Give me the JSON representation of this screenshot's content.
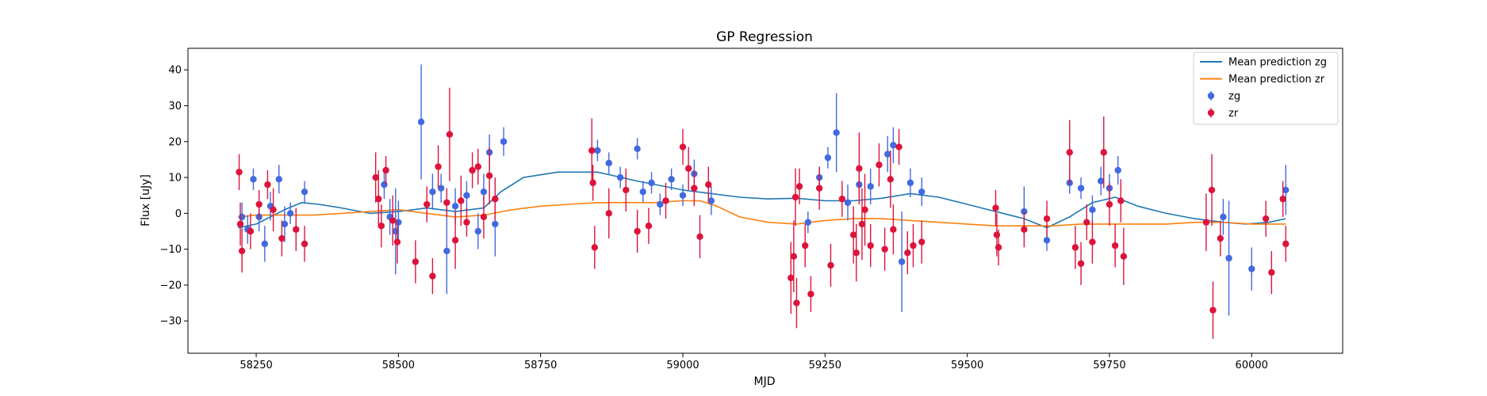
{
  "chart_data": {
    "type": "scatter",
    "title": "GP Regression",
    "xlabel": "MJD",
    "ylabel": "Flux [uJy]",
    "xlim": [
      58130,
      60160
    ],
    "ylim": [
      -39,
      46
    ],
    "xticks": [
      58250,
      58500,
      58750,
      59000,
      59250,
      59500,
      59750,
      60000
    ],
    "yticks": [
      -30,
      -20,
      -10,
      0,
      10,
      20,
      30,
      40
    ],
    "grid": false,
    "legend_position": "top-right",
    "colors": {
      "zg_mean": "#1f77b4",
      "zr_mean": "#ff7f0e",
      "zg_points": "#4169e1",
      "zr_points": "#dc143c"
    },
    "legend": [
      {
        "label": "Mean prediction zg",
        "kind": "line",
        "color": "#1f77b4"
      },
      {
        "label": "Mean prediction zr",
        "kind": "line",
        "color": "#ff7f0e"
      },
      {
        "label": "zg",
        "kind": "errorbar",
        "color": "#4169e1"
      },
      {
        "label": "zr",
        "kind": "errorbar",
        "color": "#dc143c"
      }
    ],
    "series": [
      {
        "name": "Mean prediction zg",
        "kind": "line",
        "x": [
          58218,
          58250,
          58300,
          58330,
          58360,
          58400,
          58450,
          58500,
          58550,
          58600,
          58650,
          58680,
          58720,
          58780,
          58850,
          58920,
          59000,
          59050,
          59100,
          59150,
          59200,
          59250,
          59300,
          59350,
          59400,
          59450,
          59500,
          59550,
          59600,
          59640,
          59680,
          59720,
          59760,
          59800,
          59850,
          59900,
          59950,
          59990,
          60030,
          60060
        ],
        "y": [
          -4,
          -3,
          1,
          3,
          2.5,
          1.5,
          0,
          0.5,
          1.5,
          0.5,
          1.5,
          6,
          10,
          11.5,
          11.5,
          9,
          6.5,
          5.5,
          4.5,
          4,
          4.2,
          3.5,
          3.5,
          4.2,
          5.5,
          4.5,
          2.5,
          0.5,
          -1.5,
          -4,
          -1,
          3,
          4.5,
          2,
          0,
          -1.5,
          -2.5,
          -3,
          -2.5,
          -1.5
        ]
      },
      {
        "name": "Mean prediction zr",
        "kind": "line",
        "x": [
          58218,
          58250,
          58300,
          58350,
          58400,
          58450,
          58500,
          58550,
          58600,
          58650,
          58700,
          58750,
          58800,
          58850,
          58900,
          58950,
          59000,
          59030,
          59060,
          59100,
          59150,
          59200,
          59250,
          59300,
          59350,
          59400,
          59450,
          59500,
          59550,
          59600,
          59650,
          59700,
          59750,
          59800,
          59850,
          59900,
          59950,
          60000,
          60060
        ],
        "y": [
          -1,
          -0.5,
          -0.5,
          -0.5,
          0,
          0.5,
          1,
          0,
          -1,
          -0.5,
          1,
          2,
          2.5,
          3,
          3,
          3,
          3.5,
          3.5,
          2,
          -1,
          -2.5,
          -3,
          -2,
          -1.5,
          -1.5,
          -2,
          -2.5,
          -3,
          -3.5,
          -3.5,
          -3.5,
          -3,
          -3,
          -3,
          -3,
          -2.5,
          -2.5,
          -3,
          -3
        ]
      },
      {
        "name": "zg",
        "kind": "errorbar",
        "points": [
          [
            58225,
            -1,
            4
          ],
          [
            58235,
            -4.5,
            4
          ],
          [
            58245,
            9.5,
            3
          ],
          [
            58255,
            -1,
            4
          ],
          [
            58265,
            -8.5,
            5
          ],
          [
            58275,
            2,
            4
          ],
          [
            58290,
            9.5,
            4
          ],
          [
            58300,
            -3,
            5
          ],
          [
            58310,
            0,
            3
          ],
          [
            58335,
            6,
            3
          ],
          [
            58475,
            8,
            4
          ],
          [
            58485,
            -1,
            5
          ],
          [
            58495,
            -5,
            12
          ],
          [
            58500,
            -2.5,
            6
          ],
          [
            58540,
            25.5,
            16
          ],
          [
            58560,
            6,
            5
          ],
          [
            58575,
            7,
            4
          ],
          [
            58585,
            -10.5,
            12
          ],
          [
            58600,
            2,
            5
          ],
          [
            58620,
            5,
            4
          ],
          [
            58640,
            -5,
            5
          ],
          [
            58650,
            6,
            5
          ],
          [
            58660,
            17,
            5
          ],
          [
            58670,
            -3,
            9
          ],
          [
            58685,
            20,
            4
          ],
          [
            58850,
            17.5,
            3
          ],
          [
            58870,
            14,
            3
          ],
          [
            58890,
            10,
            3
          ],
          [
            58920,
            18,
            3
          ],
          [
            58930,
            6,
            3
          ],
          [
            58945,
            8.5,
            3
          ],
          [
            58960,
            2.5,
            3
          ],
          [
            58980,
            9.5,
            3
          ],
          [
            59000,
            5,
            3
          ],
          [
            59020,
            11,
            4
          ],
          [
            59050,
            3.5,
            4
          ],
          [
            59220,
            -2.5,
            3
          ],
          [
            59240,
            10,
            3
          ],
          [
            59255,
            15.5,
            3
          ],
          [
            59270,
            22.5,
            11
          ],
          [
            59290,
            3,
            5
          ],
          [
            59310,
            8,
            4
          ],
          [
            59330,
            7.5,
            5
          ],
          [
            59360,
            16.5,
            5
          ],
          [
            59370,
            19,
            5
          ],
          [
            59385,
            -13.5,
            14
          ],
          [
            59400,
            8.5,
            4
          ],
          [
            59420,
            6,
            4
          ],
          [
            59600,
            0.5,
            7
          ],
          [
            59640,
            -7.5,
            3
          ],
          [
            59680,
            8.5,
            3
          ],
          [
            59700,
            7,
            3
          ],
          [
            59720,
            1,
            4
          ],
          [
            59735,
            9,
            4
          ],
          [
            59750,
            7,
            4
          ],
          [
            59765,
            12,
            4
          ],
          [
            59950,
            -1,
            5
          ],
          [
            59960,
            -12.5,
            16
          ],
          [
            60000,
            -15.5,
            6
          ],
          [
            60060,
            6.5,
            7
          ]
        ]
      },
      {
        "name": "zr",
        "kind": "errorbar",
        "points": [
          [
            58220,
            11.5,
            5
          ],
          [
            58222,
            -3,
            6
          ],
          [
            58225,
            -10.5,
            6
          ],
          [
            58240,
            -5,
            5
          ],
          [
            58255,
            2.5,
            4
          ],
          [
            58270,
            8,
            4
          ],
          [
            58280,
            1,
            6
          ],
          [
            58295,
            -7,
            5
          ],
          [
            58320,
            -4.5,
            6
          ],
          [
            58335,
            -8.5,
            5
          ],
          [
            58460,
            10,
            7
          ],
          [
            58465,
            4,
            8
          ],
          [
            58470,
            -3.5,
            6
          ],
          [
            58478,
            12,
            4
          ],
          [
            58490,
            -2,
            7
          ],
          [
            58498,
            -8,
            6
          ],
          [
            58530,
            -13.5,
            6
          ],
          [
            58550,
            2.5,
            5
          ],
          [
            58560,
            -17.5,
            5
          ],
          [
            58570,
            13,
            6
          ],
          [
            58585,
            3,
            4
          ],
          [
            58590,
            22,
            13
          ],
          [
            58600,
            -7.5,
            8
          ],
          [
            58610,
            3.5,
            7
          ],
          [
            58620,
            -2.5,
            4
          ],
          [
            58630,
            12,
            5
          ],
          [
            58640,
            13,
            5
          ],
          [
            58650,
            -1,
            6
          ],
          [
            58660,
            10.5,
            8
          ],
          [
            58670,
            4,
            6
          ],
          [
            58840,
            17.5,
            9
          ],
          [
            58842,
            8.5,
            5
          ],
          [
            58845,
            -9.5,
            6
          ],
          [
            58870,
            0,
            7
          ],
          [
            58900,
            6.5,
            6
          ],
          [
            58920,
            -5,
            6
          ],
          [
            58940,
            -3.5,
            5
          ],
          [
            58970,
            3.5,
            5
          ],
          [
            59000,
            18.5,
            5
          ],
          [
            59010,
            12.5,
            6
          ],
          [
            59020,
            7,
            5
          ],
          [
            59030,
            -6.5,
            6
          ],
          [
            59045,
            8,
            5
          ],
          [
            59190,
            -18,
            10
          ],
          [
            59195,
            -12,
            10
          ],
          [
            59198,
            4.5,
            8
          ],
          [
            59200,
            -25,
            7
          ],
          [
            59205,
            7.5,
            5
          ],
          [
            59215,
            -9,
            6
          ],
          [
            59225,
            -22.5,
            5
          ],
          [
            59240,
            7,
            6
          ],
          [
            59260,
            -14.5,
            6
          ],
          [
            59280,
            4,
            5
          ],
          [
            59300,
            -6,
            8
          ],
          [
            59305,
            -11,
            8
          ],
          [
            59310,
            12.5,
            10
          ],
          [
            59315,
            -3,
            10
          ],
          [
            59320,
            1,
            10
          ],
          [
            59330,
            -9,
            6
          ],
          [
            59345,
            13.5,
            6
          ],
          [
            59355,
            -10,
            6
          ],
          [
            59365,
            9.5,
            8
          ],
          [
            59370,
            -4.5,
            7
          ],
          [
            59380,
            18.5,
            5
          ],
          [
            59395,
            -11,
            6
          ],
          [
            59405,
            -9,
            6
          ],
          [
            59420,
            -8,
            6
          ],
          [
            59550,
            1.5,
            5
          ],
          [
            59552,
            -6,
            6
          ],
          [
            59555,
            -9.5,
            5
          ],
          [
            59600,
            -4.5,
            5
          ],
          [
            59640,
            -1.5,
            5
          ],
          [
            59680,
            17,
            9
          ],
          [
            59690,
            -9.5,
            6
          ],
          [
            59700,
            -14,
            6
          ],
          [
            59710,
            -2.5,
            5
          ],
          [
            59720,
            -8,
            6
          ],
          [
            59740,
            17,
            10
          ],
          [
            59750,
            2.5,
            6
          ],
          [
            59760,
            -9,
            6
          ],
          [
            59770,
            3.5,
            6
          ],
          [
            59775,
            -12,
            8
          ],
          [
            59920,
            -2.5,
            8
          ],
          [
            59930,
            6.5,
            10
          ],
          [
            59932,
            -27,
            8
          ],
          [
            59945,
            -7,
            5
          ],
          [
            60025,
            -1.5,
            5
          ],
          [
            60035,
            -16.5,
            6
          ],
          [
            60055,
            4,
            5
          ],
          [
            60060,
            -8.5,
            5
          ]
        ]
      }
    ]
  }
}
